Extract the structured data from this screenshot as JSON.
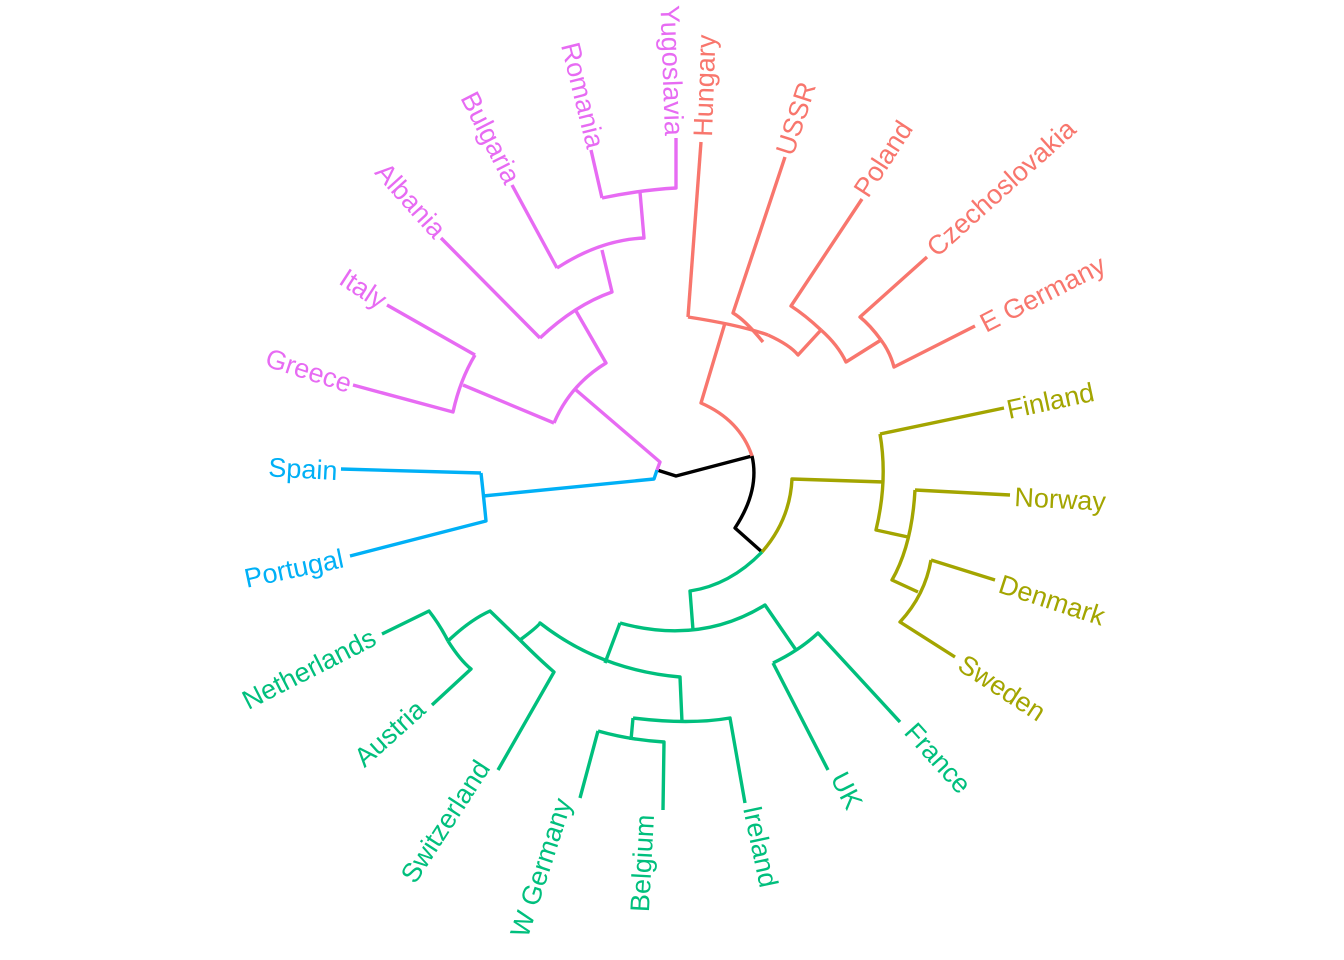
{
  "colors": {
    "root": "#000000",
    "red": "#F8766D",
    "olive": "#A3A500",
    "green": "#00BF7D",
    "blue": "#00B0F6",
    "purple": "#E76BF3"
  },
  "leaves": [
    {
      "label": "Hungary",
      "group": "red"
    },
    {
      "label": "USSR",
      "group": "red"
    },
    {
      "label": "Poland",
      "group": "red"
    },
    {
      "label": "Czechoslovakia",
      "group": "red"
    },
    {
      "label": "E Germany",
      "group": "red"
    },
    {
      "label": "Finland",
      "group": "olive"
    },
    {
      "label": "Norway",
      "group": "olive"
    },
    {
      "label": "Denmark",
      "group": "olive"
    },
    {
      "label": "Sweden",
      "group": "olive"
    },
    {
      "label": "France",
      "group": "green"
    },
    {
      "label": "UK",
      "group": "green"
    },
    {
      "label": "Ireland",
      "group": "green"
    },
    {
      "label": "Belgium",
      "group": "green"
    },
    {
      "label": "W Germany",
      "group": "green"
    },
    {
      "label": "Switzerland",
      "group": "green"
    },
    {
      "label": "Austria",
      "group": "green"
    },
    {
      "label": "Netherlands",
      "group": "green"
    },
    {
      "label": "Portugal",
      "group": "blue"
    },
    {
      "label": "Spain",
      "group": "blue"
    },
    {
      "label": "Greece",
      "group": "purple"
    },
    {
      "label": "Italy",
      "group": "purple"
    },
    {
      "label": "Albania",
      "group": "purple"
    },
    {
      "label": "Bulgaria",
      "group": "purple"
    },
    {
      "label": "Romania",
      "group": "purple"
    },
    {
      "label": "Yugoslavia",
      "group": "purple"
    }
  ]
}
